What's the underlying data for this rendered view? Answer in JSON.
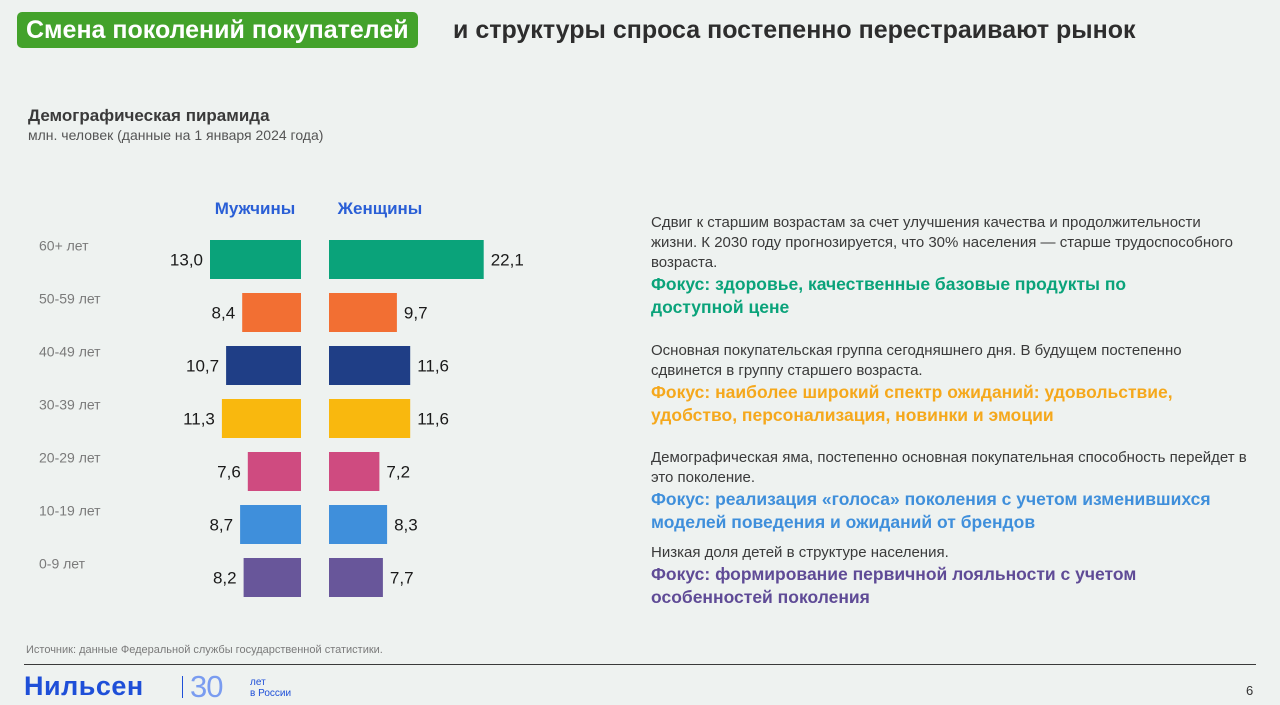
{
  "header": {
    "title_highlight": "Смена поколений покупателей",
    "title_rest": "и структуры спроса постепенно перестраивают рынок",
    "accent_color": "#43a22b"
  },
  "chart_data": {
    "type": "bar",
    "orientation": "horizontal-pyramid",
    "title": "Демографическая пирамида",
    "subtitle": "млн. человек (данные на 1 января 2024 года)",
    "categories": [
      "60+ лет",
      "50-59 лет",
      "40-49 лет",
      "30-39 лет",
      "20-29 лет",
      "10-19 лет",
      "0-9 лет"
    ],
    "series": [
      {
        "name": "Мужчины",
        "values": [
          13.0,
          8.4,
          10.7,
          11.3,
          7.6,
          8.7,
          8.2
        ],
        "labels": [
          "13,0",
          "8,4",
          "10,7",
          "11,3",
          "7,6",
          "8,7",
          "8,2"
        ]
      },
      {
        "name": "Женщины",
        "values": [
          22.1,
          9.7,
          11.6,
          11.6,
          7.2,
          8.3,
          7.7
        ],
        "labels": [
          "22,1",
          "9,7",
          "11,6",
          "11,6",
          "7,2",
          "8,3",
          "7,7"
        ]
      }
    ],
    "bar_colors": [
      "#0aa37a",
      "#f26f33",
      "#1f3e86",
      "#f9b80e",
      "#cf4b80",
      "#3f8fdb",
      "#68569a"
    ],
    "legend_color": "#2a5fd6",
    "grid": false
  },
  "notes": [
    {
      "text": "Сдвиг к старшим возрастам за счет улучшения качества и продолжительности жизни. К 2030 году прогнозируется, что 30% населения — старше трудоспособного возраста.",
      "focus": "Фокус: здоровье, качественные базовые продукты по доступной цене",
      "color": "#0aa37a"
    },
    {
      "text": "Основная покупательская группа сегодняшнего дня. В будущем постепенно сдвинется в группу старшего возраста.",
      "focus": "Фокус: наиболее широкий спектр ожиданий: удовольствие, удобство, персонализация, новинки и эмоции",
      "color": "#f5a81c"
    },
    {
      "text": "Демографическая яма, постепенно основная покупательная способность перейдет в это поколение.",
      "focus": "Фокус: реализация «голоса» поколения с учетом изменившихся моделей поведения и ожиданий от брендов",
      "color": "#3f8fdb"
    },
    {
      "text": "Низкая доля детей в структуре населения.",
      "focus": "Фокус: формирование первичной лояльности с учетом особенностей поколения",
      "color": "#5f4b96"
    }
  ],
  "footer": {
    "source": "Источник: данные Федеральной службы государственной статистики.",
    "logo": "Нильсен",
    "logo_number": "30",
    "logo_sub_1": "лет",
    "logo_sub_2": "в России",
    "page_number": "6"
  }
}
